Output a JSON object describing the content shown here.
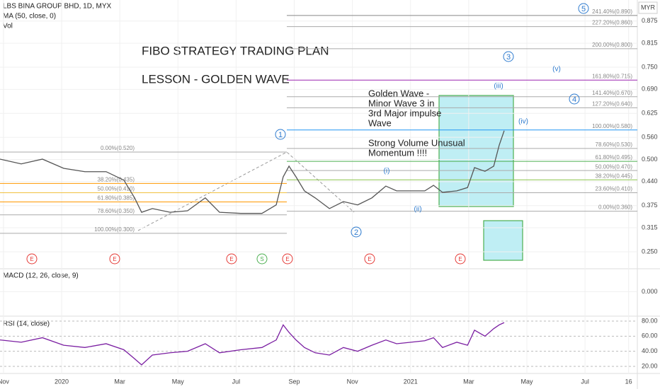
{
  "chart_data": [
    {
      "type": "line",
      "series": [
        {
          "name": "LBS BINA GROUP BHD, 1D, MYX",
          "color": "#555555",
          "values": [
            0.501,
            0.488,
            0.501,
            0.476,
            0.467,
            0.467,
            0.444,
            0.396,
            0.357,
            0.367,
            0.357,
            0.361,
            0.396,
            0.357,
            0.354,
            0.354,
            0.377,
            0.453,
            0.482,
            0.453,
            0.415,
            0.396,
            0.367,
            0.386,
            0.377,
            0.396,
            0.428,
            0.415,
            0.415,
            0.415,
            0.43,
            0.411,
            0.415,
            0.424,
            0.478,
            0.468,
            0.482,
            0.539,
            0.578
          ]
        }
      ],
      "indicators": [
        "MA (50, close, 0)",
        "Vol"
      ],
      "currency": "MYR",
      "x": [
        -0.12,
        0.61,
        1.34,
        2.07,
        2.8,
        3.53,
        4.14,
        4.51,
        4.75,
        5.12,
        5.73,
        6.33,
        6.94,
        7.43,
        8.16,
        8.89,
        9.38,
        9.62,
        9.82,
        10.06,
        10.35,
        10.72,
        11.21,
        11.69,
        12.18,
        12.67,
        13.15,
        13.52,
        14.01,
        14.49,
        14.79,
        15.1,
        15.59,
        15.96,
        16.2,
        16.56,
        16.86,
        17.05,
        17.22
      ],
      "xlim": [
        -0.12,
        21.8
      ],
      "xticks": [
        {
          "value": 0,
          "label": "Nov"
        },
        {
          "value": 2,
          "label": "2020"
        },
        {
          "value": 4,
          "label": "Mar"
        },
        {
          "value": 6,
          "label": "May"
        },
        {
          "value": 8,
          "label": "Jul"
        },
        {
          "value": 10,
          "label": "Sep"
        },
        {
          "value": 12,
          "label": "Nov"
        },
        {
          "value": 14,
          "label": "2021"
        },
        {
          "value": 16,
          "label": "Mar"
        },
        {
          "value": 18,
          "label": "May"
        },
        {
          "value": 20,
          "label": "Jul"
        },
        {
          "value": 21.5,
          "label": "16"
        }
      ],
      "ylim": [
        0.204,
        0.932
      ],
      "yticks": [
        {
          "value": 0.875,
          "label": "0.875"
        },
        {
          "value": 0.815,
          "label": "0.815"
        },
        {
          "value": 0.75,
          "label": "0.750"
        },
        {
          "value": 0.69,
          "label": "0.690"
        },
        {
          "value": 0.625,
          "label": "0.625"
        },
        {
          "value": 0.56,
          "label": "0.560"
        },
        {
          "value": 0.5,
          "label": "0.500"
        },
        {
          "value": 0.44,
          "label": "0.440"
        },
        {
          "value": 0.375,
          "label": "0.375"
        },
        {
          "value": 0.315,
          "label": "0.315"
        },
        {
          "value": 0.25,
          "label": "0.250"
        }
      ],
      "fib_right": [
        {
          "label": "241.40%(0.890)",
          "value": 0.89,
          "color": "#888888"
        },
        {
          "label": "227.20%(0.860)",
          "value": 0.86,
          "color": "#aaaaaa"
        },
        {
          "label": "200.00%(0.800)",
          "value": 0.8,
          "color": "#aaaaaa"
        },
        {
          "label": "161.80%(0.715)",
          "value": 0.715,
          "color": "#9c27b0"
        },
        {
          "label": "141.40%(0.670)",
          "value": 0.67,
          "color": "#aaaaaa"
        },
        {
          "label": "127.20%(0.640)",
          "value": 0.64,
          "color": "#aaaaaa"
        },
        {
          "label": "100.00%(0.580)",
          "value": 0.58,
          "color": "#2196f3"
        },
        {
          "label": "78.60%(0.530)",
          "value": 0.53,
          "color": "#aaaaaa"
        },
        {
          "label": "61.80%(0.495)",
          "value": 0.495,
          "color": "#4caf50"
        },
        {
          "label": "50.00%(0.470)",
          "value": 0.47,
          "color": "#aaaaaa"
        },
        {
          "label": "38.20%(0.445)",
          "value": 0.445,
          "color": "#8bc34a"
        },
        {
          "label": "23.60%(0.410)",
          "value": 0.41,
          "color": "#aaaaaa"
        },
        {
          "label": "0.00%(0.360)",
          "value": 0.36,
          "color": "#aaaaaa"
        }
      ],
      "fib_left": [
        {
          "label": "0.00%(0.520)",
          "value": 0.52,
          "color": "#aaaaaa"
        },
        {
          "label": "38.20%(0.435)",
          "value": 0.435,
          "color": "#ff9800"
        },
        {
          "label": "50.00%(0.410)",
          "value": 0.41,
          "color": "#f0c040"
        },
        {
          "label": "61.80%(0.385)",
          "value": 0.385,
          "color": "#ff9800"
        },
        {
          "label": "78.60%(0.350)",
          "value": 0.35,
          "color": "#aaaaaa"
        },
        {
          "label": "100.00%(0.300)",
          "value": 0.3,
          "color": "#aaaaaa"
        }
      ],
      "notes": [
        "FIBO STRATEGY TRADING PLAN",
        "LESSON - GOLDEN WAVE"
      ],
      "box_text": [
        "Golden Wave -",
        "Minor Wave 3 in",
        "3rd Major impulse",
        "Wave",
        "",
        "Strong Volume Unusual",
        "Momentum !!!!"
      ],
      "waves": [
        "1",
        "2",
        "3",
        "4",
        "5"
      ],
      "subwaves": [
        "(i)",
        "(ii)",
        "(iii)",
        "(iv)",
        "(v)"
      ],
      "events": [
        "E",
        "E",
        "E",
        "S",
        "E",
        "E",
        "E"
      ]
    },
    {
      "type": "line",
      "title": "MACD (12, 26, close, 9)",
      "ylim": [
        -0.04,
        0.04
      ],
      "yticks": [
        {
          "value": 0,
          "label": "0.000"
        }
      ]
    },
    {
      "type": "line",
      "title": "RSI (14, close)",
      "series": [
        {
          "name": "RSI",
          "color": "#7b1fa2",
          "values": [
            55,
            52,
            58,
            48,
            45,
            50,
            42,
            30,
            22,
            35,
            38,
            40,
            50,
            38,
            42,
            45,
            55,
            75,
            65,
            55,
            45,
            38,
            35,
            45,
            40,
            48,
            55,
            50,
            52,
            54,
            58,
            45,
            52,
            48,
            68,
            60,
            70,
            75,
            78
          ]
        }
      ],
      "ylim": [
        13.4,
        83.75
      ],
      "yticks": [
        {
          "value": 80,
          "label": "80.00"
        },
        {
          "value": 60,
          "label": "60.00"
        },
        {
          "value": 40,
          "label": "40.00"
        },
        {
          "value": 20,
          "label": "20.00"
        }
      ]
    }
  ]
}
